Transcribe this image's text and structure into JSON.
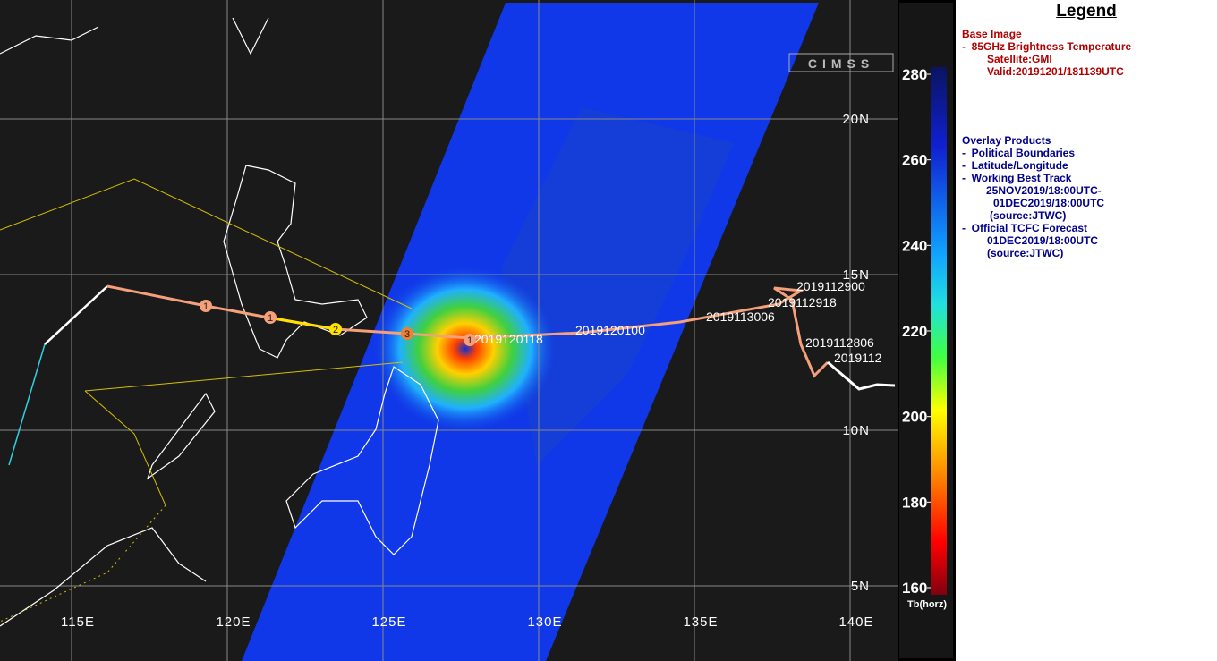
{
  "map": {
    "lat_labels": [
      "20N",
      "15N",
      "10N",
      "5N"
    ],
    "lon_labels": [
      "115E",
      "120E",
      "125E",
      "130E",
      "135E",
      "140E"
    ],
    "track_labels": [
      "2019112900",
      "2019112918",
      "2019113006",
      "2019120100",
      "2019120118",
      "2019112806",
      "2019112"
    ],
    "intensity_markers": [
      "1",
      "1",
      "2",
      "3",
      "1"
    ],
    "logo": "CIMSS"
  },
  "colorbar": {
    "ticks": [
      280,
      260,
      240,
      220,
      200,
      180,
      160
    ],
    "lim": [
      160,
      280
    ],
    "label": "Tb(horz)"
  },
  "legend": {
    "title": "Legend",
    "base_heading": "Base Image",
    "base_items": [
      "-  85GHz Brightness Temperature",
      "Satellite:GMI",
      "Valid:20191201/181139UTC"
    ],
    "overlay_heading": "Overlay Products",
    "overlay_items": [
      "-  Political Boundaries",
      "-  Latitude/Longitude",
      "-  Working Best Track",
      "25NOV2019/18:00UTC-",
      "01DEC2019/18:00UTC",
      "(source:JTWC)",
      "-  Official TCFC Forecast",
      "01DEC2019/18:00UTC",
      "(source:JTWC)"
    ]
  }
}
